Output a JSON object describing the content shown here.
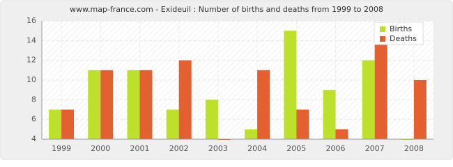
{
  "chart_data": {
    "type": "bar",
    "title": "www.map-france.com - Exideuil : Number of births and deaths from 1999 to 2008",
    "categories": [
      "1999",
      "2000",
      "2001",
      "2002",
      "2003",
      "2004",
      "2005",
      "2006",
      "2007",
      "2008"
    ],
    "series": [
      {
        "name": "Births",
        "color": "#bde02c",
        "values": [
          7,
          11,
          11,
          7,
          8,
          5,
          15,
          9,
          12,
          4
        ]
      },
      {
        "name": "Deaths",
        "color": "#e36130",
        "values": [
          7,
          11,
          11,
          12,
          4,
          11,
          7,
          5,
          14,
          10
        ]
      }
    ],
    "ylim": [
      4,
      16
    ],
    "yticks": [
      4,
      6,
      8,
      10,
      12,
      14,
      16
    ],
    "grid": true,
    "legend": "top-right"
  }
}
